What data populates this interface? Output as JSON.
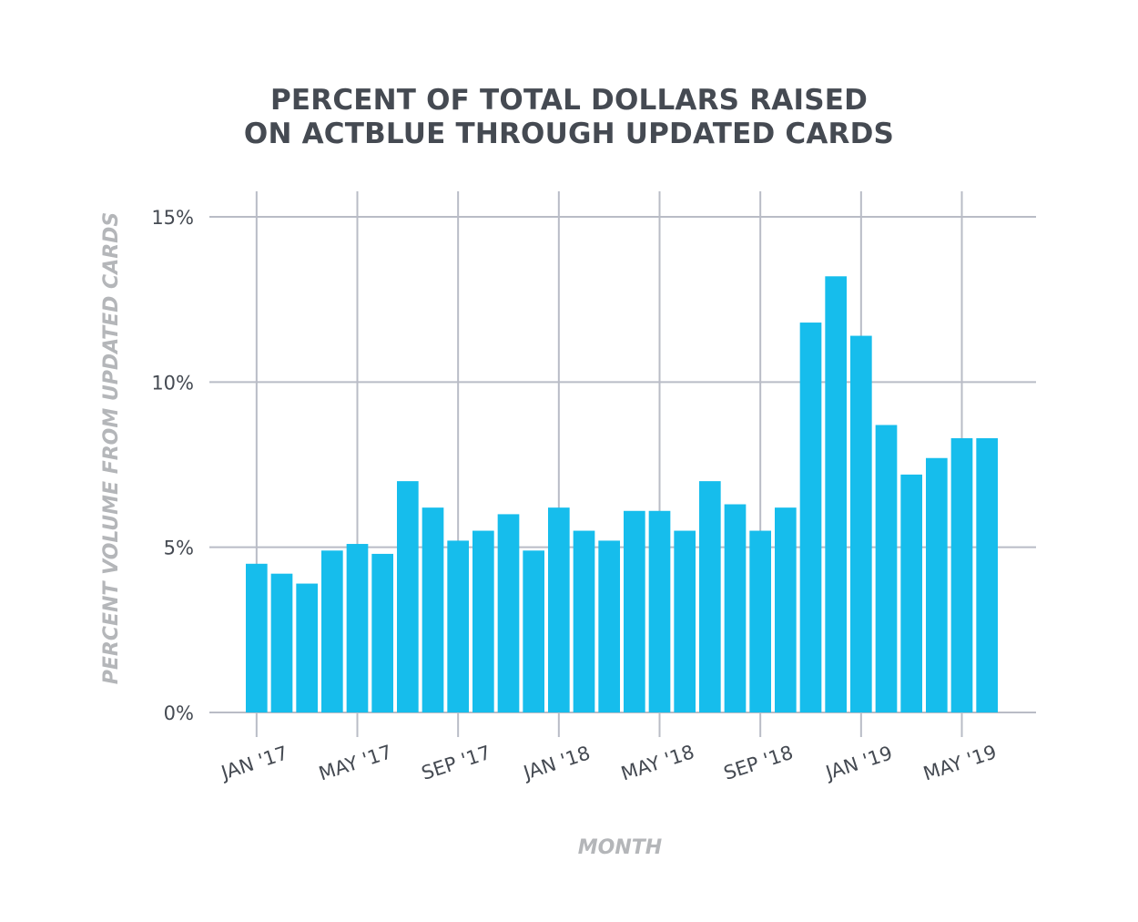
{
  "colors": {
    "bar": "#16bdec",
    "grid": "#b9bcc6",
    "title": "#454a52",
    "axis_label": "#b4b6b9",
    "tick": "#454a52"
  },
  "chart_data": {
    "type": "bar",
    "title_lines": [
      "PERCENT OF TOTAL DOLLARS RAISED",
      "ON ACTBLUE THROUGH UPDATED CARDS"
    ],
    "xlabel": "MONTH",
    "ylabel": "PERCENT VOLUME FROM UPDATED CARDS",
    "ylim": [
      0,
      15
    ],
    "y_ticks": [
      {
        "value": 0,
        "label": "0%"
      },
      {
        "value": 5,
        "label": "5%"
      },
      {
        "value": 10,
        "label": "10%"
      },
      {
        "value": 15,
        "label": "15%"
      }
    ],
    "x_ticks": [
      {
        "index": 0,
        "label": "JAN '17"
      },
      {
        "index": 4,
        "label": "MAY '17"
      },
      {
        "index": 8,
        "label": "SEP '17"
      },
      {
        "index": 12,
        "label": "JAN '18"
      },
      {
        "index": 16,
        "label": "MAY '18"
      },
      {
        "index": 20,
        "label": "SEP '18"
      },
      {
        "index": 24,
        "label": "JAN '19"
      },
      {
        "index": 28,
        "label": "MAY '19"
      }
    ],
    "series": [
      {
        "name": "Percent volume from updated cards",
        "values": [
          4.5,
          4.2,
          3.9,
          4.9,
          5.1,
          4.8,
          7.0,
          6.2,
          5.2,
          5.5,
          6.0,
          4.9,
          6.2,
          5.5,
          5.2,
          6.1,
          6.1,
          5.5,
          7.0,
          6.3,
          5.5,
          6.2,
          11.8,
          13.2,
          11.4,
          8.7,
          7.2,
          7.7,
          8.3,
          8.3
        ]
      }
    ],
    "grid": true
  }
}
